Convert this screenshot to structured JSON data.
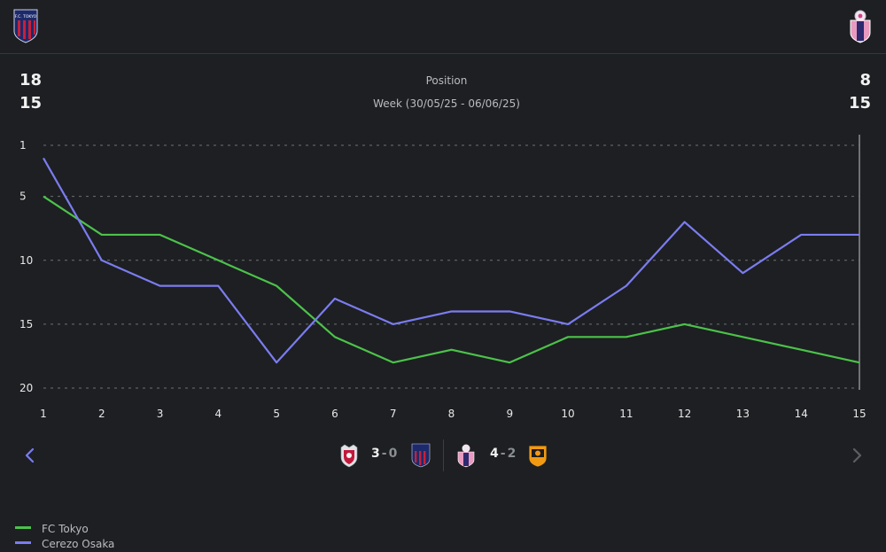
{
  "header": {
    "left_crest_text": "F.C. TOKYO",
    "left_crest_icon": "fc-tokyo-crest-icon",
    "right_crest_icon": "cerezo-osaka-crest-icon"
  },
  "stats": {
    "left_top": "18",
    "left_bottom": "15",
    "right_top": "8",
    "right_bottom": "15"
  },
  "chart_title": "Position",
  "chart_subtitle": "Week (30/05/25 - 06/06/25)",
  "chart_data": {
    "type": "line",
    "title": "Position",
    "subtitle": "Week (30/05/25 - 06/06/25)",
    "x": [
      1,
      2,
      3,
      4,
      5,
      6,
      7,
      8,
      9,
      10,
      11,
      12,
      13,
      14,
      15
    ],
    "yticks": [
      1,
      5,
      10,
      15,
      20
    ],
    "ylim": [
      1,
      20
    ],
    "y_inverted": true,
    "series": [
      {
        "name": "FC Tokyo",
        "color": "#4cc24a",
        "values": [
          5,
          8,
          8,
          10,
          12,
          16,
          18,
          17,
          18,
          16,
          16,
          15,
          16,
          17,
          18
        ]
      },
      {
        "name": "Cerezo Osaka",
        "color": "#7b7cf0",
        "values": [
          2,
          10,
          12,
          12,
          18,
          13,
          15,
          14,
          14,
          15,
          12,
          7,
          11,
          8,
          8
        ]
      }
    ],
    "highlight_x": 15,
    "legend_position": "bottom-left",
    "grid": true
  },
  "matches": [
    {
      "home_icon": "kashima-crest-icon",
      "home_score": "3",
      "away_score": "0",
      "away_icon": "fc-tokyo-crest-icon"
    },
    {
      "home_icon": "cerezo-osaka-crest-icon",
      "home_score": "4",
      "away_score": "2",
      "away_icon": "shimizu-crest-icon"
    }
  ],
  "score_separator": "-",
  "nav": {
    "prev_icon": "chevron-left-icon",
    "next_icon": "chevron-right-icon",
    "prev_color": "#7b7cf0",
    "next_color": "#5b5e63"
  },
  "legend": [
    {
      "label": "FC Tokyo",
      "color": "#4cc24a"
    },
    {
      "label": "Cerezo Osaka",
      "color": "#7b7cf0"
    }
  ]
}
